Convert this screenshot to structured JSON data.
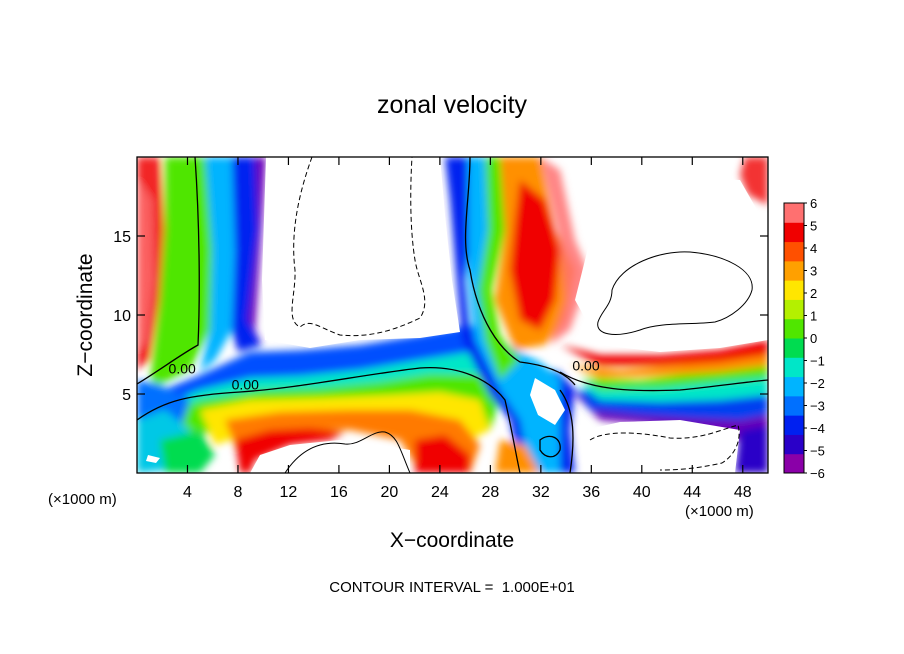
{
  "chart_data": {
    "type": "heatmap",
    "title": "zonal velocity",
    "xlabel": "X−coordinate",
    "ylabel": "Z−coordinate",
    "x_unit_label": "(×1000 m)",
    "y_unit_label": "(×1000 m)",
    "xlim": [
      0,
      50
    ],
    "ylim": [
      0,
      20
    ],
    "x_ticks": [
      "4",
      "8",
      "12",
      "16",
      "20",
      "24",
      "28",
      "32",
      "36",
      "40",
      "44",
      "48"
    ],
    "x_tick_values": [
      4,
      8,
      12,
      16,
      20,
      24,
      28,
      32,
      36,
      40,
      44,
      48
    ],
    "y_ticks": [
      "5",
      "10",
      "15"
    ],
    "y_tick_values": [
      5,
      10,
      15
    ],
    "colorbar": {
      "min": -6,
      "max": 6,
      "tick_labels": [
        "6",
        "5",
        "4",
        "3",
        "2",
        "1",
        "0",
        "−1",
        "−2",
        "−3",
        "−4",
        "−5",
        "−6"
      ],
      "tick_values": [
        6,
        5,
        4,
        3,
        2,
        1,
        0,
        -1,
        -2,
        -3,
        -4,
        -5,
        -6
      ],
      "colors": [
        "#8a00a8",
        "#2a00c8",
        "#0020f0",
        "#0070ff",
        "#00b4ff",
        "#00e6c8",
        "#00dc50",
        "#50e600",
        "#b4f000",
        "#ffe600",
        "#ffa000",
        "#ff5000",
        "#f00000",
        "#ff7070"
      ]
    },
    "contour_labels": [
      {
        "text": "0.00",
        "x": 2.5,
        "z": 6.3
      },
      {
        "text": "0.00",
        "x": 7.5,
        "z": 5.3
      },
      {
        "text": "0.00",
        "x": 34.5,
        "z": 6.5
      }
    ],
    "footer": "CONTOUR INTERVAL =  1.000E+01"
  }
}
